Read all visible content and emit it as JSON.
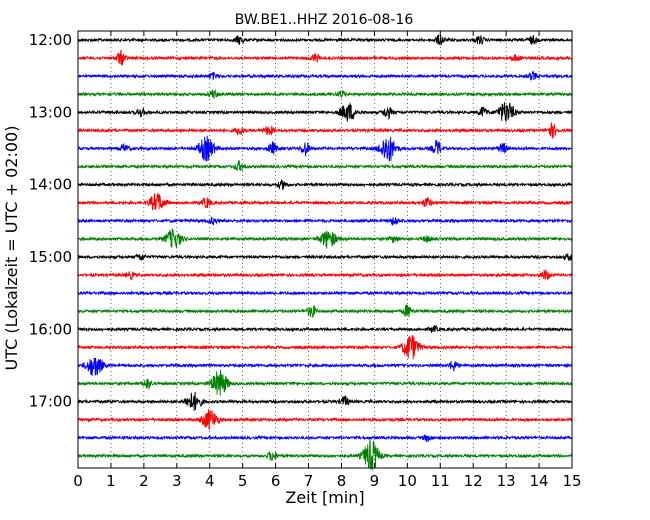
{
  "chart_data": {
    "type": "line",
    "title": "BW.BE1..HHZ 2016-08-16",
    "xlabel": "Zeit  [min]",
    "ylabel": "UTC (Lokalzeit = UTC + 02:00)",
    "xlim": [
      0,
      15
    ],
    "xticks": [
      0,
      1,
      2,
      3,
      4,
      5,
      6,
      7,
      8,
      9,
      10,
      11,
      12,
      13,
      14,
      15
    ],
    "xtick_labels": [
      "0",
      "1",
      "2",
      "3",
      "4",
      "5",
      "6",
      "7",
      "8",
      "9",
      "10",
      "11",
      "12",
      "13",
      "14",
      "15"
    ],
    "grid": "vertical dotted",
    "ytick_labels": [
      "12:00",
      "13:00",
      "14:00",
      "15:00",
      "16:00",
      "17:00"
    ],
    "trace_colors": [
      "#000000",
      "#ff0000",
      "#0000ff",
      "#008000"
    ],
    "traces": [
      {
        "start": "12:00",
        "events": [
          [
            4.9,
            4
          ],
          [
            11.0,
            5
          ],
          [
            12.2,
            4
          ],
          [
            13.8,
            4
          ]
        ]
      },
      {
        "start": "12:15",
        "events": [
          [
            1.3,
            7
          ],
          [
            7.2,
            4
          ],
          [
            13.3,
            3
          ]
        ]
      },
      {
        "start": "12:30",
        "events": [
          [
            4.1,
            3
          ],
          [
            13.8,
            4
          ]
        ]
      },
      {
        "start": "12:45",
        "events": [
          [
            4.1,
            4
          ],
          [
            8.0,
            3
          ]
        ]
      },
      {
        "start": "13:00",
        "events": [
          [
            1.9,
            4
          ],
          [
            8.2,
            9
          ],
          [
            9.4,
            6
          ],
          [
            12.3,
            5
          ],
          [
            13.0,
            11
          ]
        ]
      },
      {
        "start": "13:15",
        "events": [
          [
            4.9,
            4
          ],
          [
            5.8,
            5
          ],
          [
            14.4,
            7
          ]
        ]
      },
      {
        "start": "13:30",
        "events": [
          [
            1.4,
            4
          ],
          [
            3.9,
            12
          ],
          [
            5.9,
            6
          ],
          [
            6.9,
            7
          ],
          [
            9.4,
            14
          ],
          [
            10.9,
            8
          ],
          [
            12.9,
            5
          ]
        ]
      },
      {
        "start": "13:45",
        "events": [
          [
            4.9,
            5
          ]
        ]
      },
      {
        "start": "14:00",
        "events": [
          [
            6.2,
            4
          ]
        ]
      },
      {
        "start": "14:15",
        "events": [
          [
            2.4,
            9
          ],
          [
            3.9,
            5
          ],
          [
            10.6,
            5
          ]
        ]
      },
      {
        "start": "14:30",
        "events": [
          [
            4.1,
            3
          ],
          [
            9.6,
            4
          ]
        ]
      },
      {
        "start": "14:45",
        "events": [
          [
            2.9,
            10
          ],
          [
            7.6,
            9
          ],
          [
            9.6,
            3
          ],
          [
            10.6,
            3
          ]
        ]
      },
      {
        "start": "15:00",
        "events": [
          [
            1.9,
            3
          ],
          [
            14.9,
            3
          ]
        ]
      },
      {
        "start": "15:15",
        "events": [
          [
            1.6,
            3
          ],
          [
            14.2,
            5
          ]
        ]
      },
      {
        "start": "15:30",
        "events": []
      },
      {
        "start": "15:45",
        "events": [
          [
            7.1,
            6
          ],
          [
            10.0,
            6
          ]
        ]
      },
      {
        "start": "16:00",
        "events": [
          [
            10.8,
            3
          ]
        ]
      },
      {
        "start": "16:15",
        "events": [
          [
            10.1,
            13
          ]
        ]
      },
      {
        "start": "16:30",
        "events": [
          [
            0.5,
            11
          ],
          [
            11.4,
            5
          ]
        ]
      },
      {
        "start": "16:45",
        "events": [
          [
            2.1,
            5
          ],
          [
            4.3,
            13
          ]
        ]
      },
      {
        "start": "17:00",
        "events": [
          [
            3.5,
            9
          ],
          [
            8.1,
            5
          ]
        ]
      },
      {
        "start": "17:15",
        "events": [
          [
            4.0,
            10
          ]
        ]
      },
      {
        "start": "17:30",
        "events": [
          [
            10.6,
            3
          ]
        ]
      },
      {
        "start": "17:45",
        "events": [
          [
            5.9,
            5
          ],
          [
            8.9,
            16
          ]
        ]
      }
    ]
  }
}
